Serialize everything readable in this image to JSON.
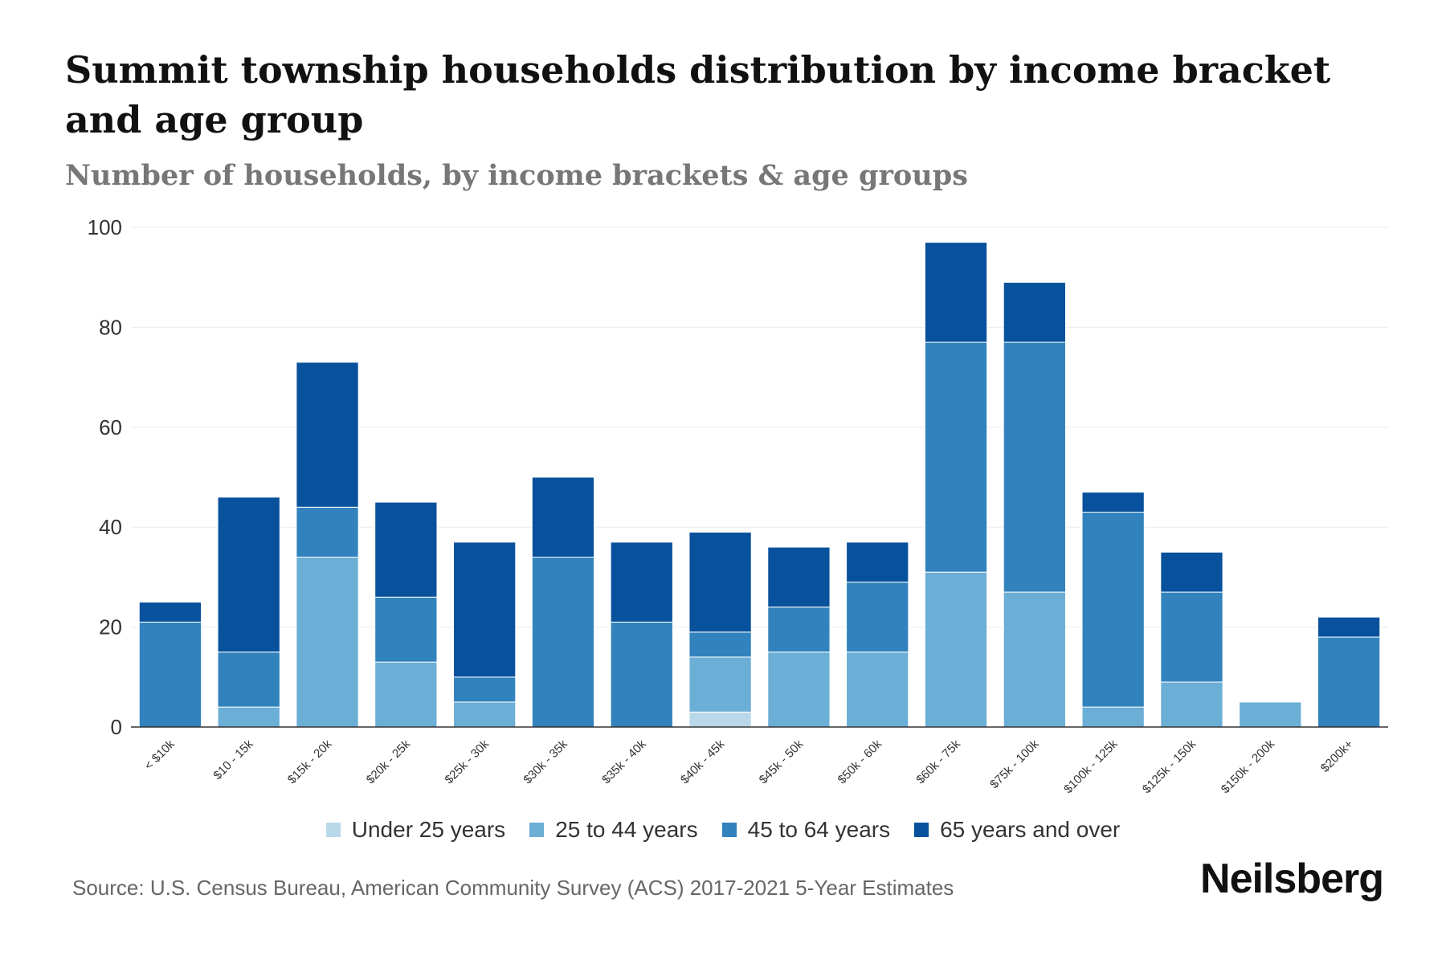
{
  "chart_data": {
    "type": "bar",
    "stacked": true,
    "title": "Summit township households distribution by income bracket and age group",
    "subtitle": "Number of households, by income brackets & age groups",
    "xlabel": "",
    "ylabel": "",
    "ylim": [
      0,
      100
    ],
    "yticks": [
      0,
      20,
      40,
      60,
      80,
      100
    ],
    "grid": true,
    "legend_position": "bottom",
    "categories": [
      "< $10k",
      "$10 - 15k",
      "$15k - 20k",
      "$20k - 25k",
      "$25k - 30k",
      "$30k - 35k",
      "$35k - 40k",
      "$40k - 45k",
      "$45k - 50k",
      "$50k - 60k",
      "$60k - 75k",
      "$75k - 100k",
      "$100k - 125k",
      "$125k - 150k",
      "$150k - 200k",
      "$200k+"
    ],
    "series": [
      {
        "name": "Under 25 years",
        "color": "#b9d9ea",
        "values": [
          0,
          0,
          0,
          0,
          0,
          0,
          0,
          3,
          0,
          0,
          0,
          0,
          0,
          0,
          0,
          0
        ]
      },
      {
        "name": "25 to 44 years",
        "color": "#6baed6",
        "values": [
          0,
          4,
          34,
          13,
          5,
          0,
          0,
          11,
          15,
          15,
          31,
          27,
          4,
          9,
          5,
          0
        ]
      },
      {
        "name": "45 to 64 years",
        "color": "#3182bd",
        "values": [
          21,
          11,
          10,
          13,
          5,
          34,
          21,
          5,
          9,
          14,
          46,
          50,
          39,
          18,
          0,
          18
        ]
      },
      {
        "name": "65 years and over",
        "color": "#08519c",
        "values": [
          4,
          31,
          29,
          19,
          27,
          16,
          16,
          20,
          12,
          8,
          20,
          12,
          4,
          8,
          0,
          4
        ]
      }
    ]
  },
  "source": "Source: U.S. Census Bureau, American Community Survey (ACS) 2017-2021 5-Year Estimates",
  "brand": "Neilsberg"
}
